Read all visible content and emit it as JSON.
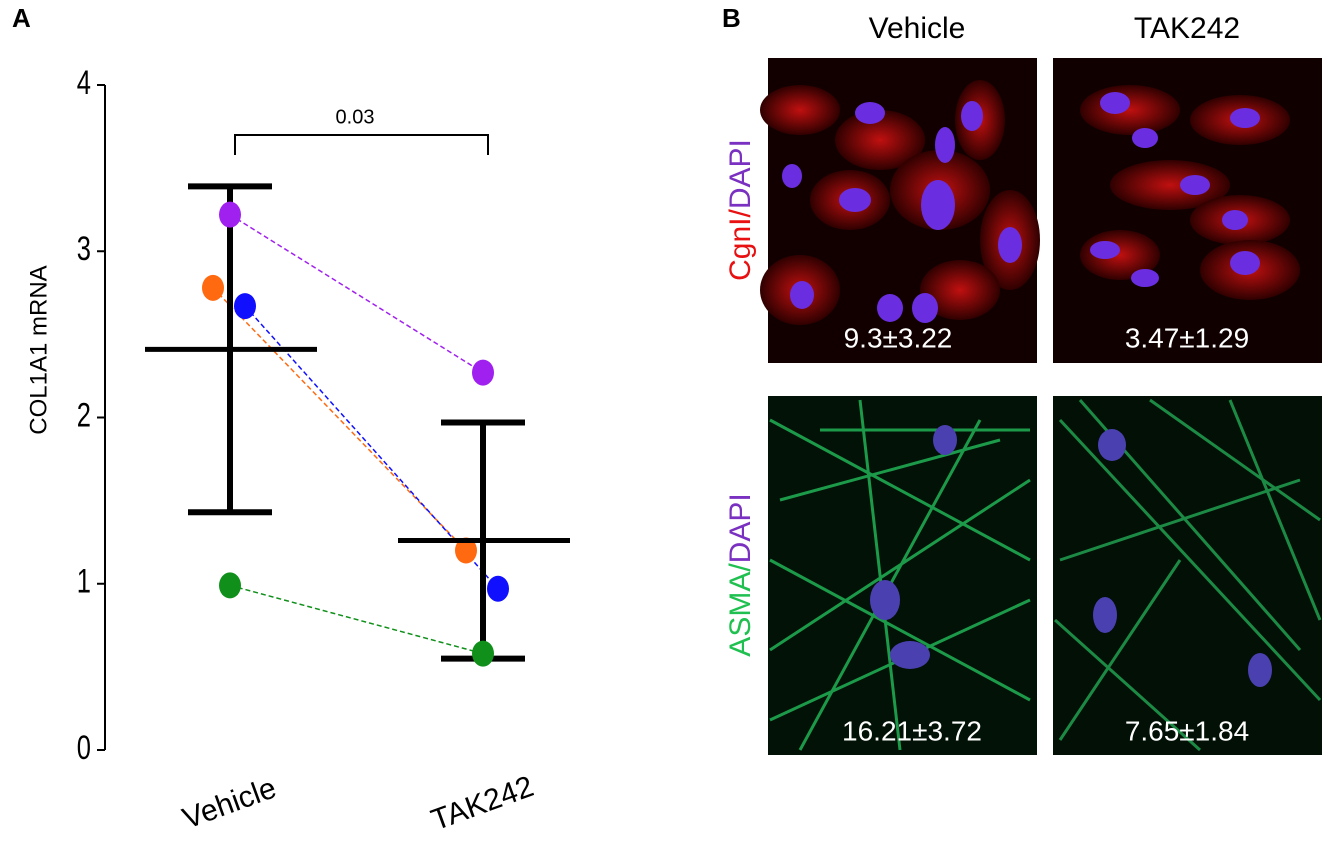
{
  "panel_labels": [
    "A",
    "B"
  ],
  "chart_data": {
    "type": "paired-scatter",
    "ylabel": "COL1A1 mRNA",
    "categories": [
      "Vehicle",
      "TAK242"
    ],
    "series": [
      {
        "color": "#a020f0",
        "values": [
          3.22,
          2.27
        ]
      },
      {
        "color": "#ff6a10",
        "values": [
          2.78,
          1.2
        ]
      },
      {
        "color": "#1010ff",
        "values": [
          2.67,
          0.97
        ]
      },
      {
        "color": "#10901a",
        "values": [
          0.99,
          0.58
        ]
      }
    ],
    "mean": [
      2.41,
      1.26
    ],
    "error": [
      0.98,
      0.71
    ],
    "annotation": "0.03",
    "ylim": [
      0,
      4
    ],
    "yticks": [
      0,
      1,
      2,
      3,
      4
    ]
  },
  "micrographs": {
    "columns": [
      "Vehicle",
      "TAK242"
    ],
    "rows": [
      {
        "marker": "CgnI/",
        "stain": "DAPI",
        "values": [
          "9.3±3.22",
          "3.47±1.29"
        ]
      },
      {
        "marker": "ASMA/",
        "stain": "DAPI",
        "values": [
          "16.21±3.72",
          "7.65±1.84"
        ]
      }
    ]
  }
}
